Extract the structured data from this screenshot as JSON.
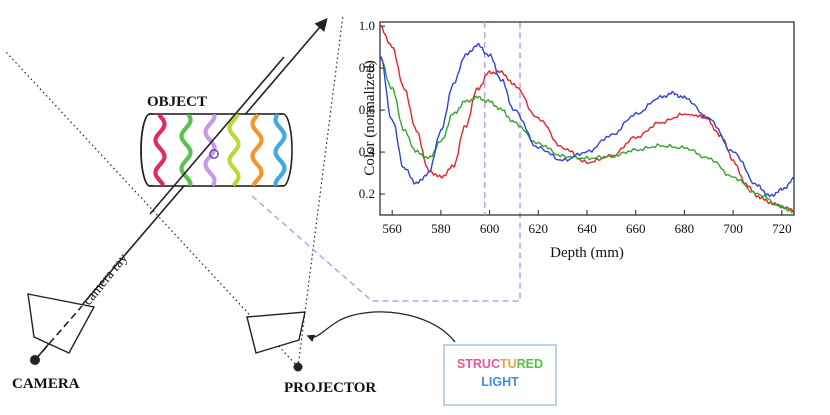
{
  "labels": {
    "object": "OBJECT",
    "camera": "CAMERA",
    "projector": "PROJECTOR",
    "camera_ray": "camera ray",
    "structured_light_parts": [
      {
        "text": "STRUC",
        "color": "#e8559b"
      },
      {
        "text": "TU",
        "color": "#f2a03a"
      },
      {
        "text": "RED",
        "color": "#52c04a"
      }
    ],
    "light_word": {
      "text": "LIGHT",
      "color": "#3b8fd8"
    }
  },
  "stripes": [
    {
      "name": "magenta",
      "color": "#e0286f"
    },
    {
      "name": "green",
      "color": "#5bc24d"
    },
    {
      "name": "lavender",
      "color": "#c89be8"
    },
    {
      "name": "lime",
      "color": "#b9d83a"
    },
    {
      "name": "orange",
      "color": "#f5932c"
    },
    {
      "name": "sky",
      "color": "#3fa9e6"
    }
  ],
  "chart_data": {
    "type": "line",
    "xlabel": "Depth (mm)",
    "ylabel": "Color (normalized)",
    "xlim": [
      555,
      725
    ],
    "ylim": [
      0.1,
      1.02
    ],
    "x_ticks": [
      560,
      580,
      600,
      620,
      640,
      660,
      680,
      700,
      720
    ],
    "y_ticks": [
      0.2,
      0.4,
      0.6,
      0.8,
      1.0
    ],
    "x_tick_labels": [
      "560",
      "580",
      "600",
      "620",
      "640",
      "660",
      "680",
      "700",
      "720"
    ],
    "y_tick_labels": [
      "0.2",
      "0.4",
      "0.6",
      "0.8",
      "1.0"
    ],
    "marker_x": 598,
    "series": [
      {
        "name": "red",
        "color": "#e0262e",
        "x": [
          555,
          560,
          565,
          570,
          575,
          580,
          585,
          590,
          595,
          600,
          605,
          610,
          620,
          630,
          640,
          650,
          660,
          670,
          680,
          688,
          695,
          700,
          705,
          710,
          715,
          720,
          725
        ],
        "y": [
          1.0,
          0.9,
          0.7,
          0.5,
          0.31,
          0.28,
          0.33,
          0.52,
          0.7,
          0.78,
          0.78,
          0.72,
          0.56,
          0.42,
          0.35,
          0.38,
          0.47,
          0.54,
          0.58,
          0.57,
          0.48,
          0.36,
          0.25,
          0.19,
          0.16,
          0.14,
          0.12
        ]
      },
      {
        "name": "green",
        "color": "#33a532",
        "x": [
          555,
          560,
          565,
          570,
          575,
          580,
          585,
          590,
          595,
          600,
          605,
          610,
          620,
          630,
          640,
          650,
          660,
          670,
          680,
          690,
          700,
          710,
          720,
          725
        ],
        "y": [
          0.85,
          0.7,
          0.5,
          0.4,
          0.37,
          0.45,
          0.58,
          0.64,
          0.66,
          0.64,
          0.6,
          0.54,
          0.44,
          0.38,
          0.37,
          0.38,
          0.41,
          0.43,
          0.42,
          0.37,
          0.28,
          0.2,
          0.14,
          0.11
        ]
      },
      {
        "name": "blue",
        "color": "#2f42d6",
        "x": [
          555,
          560,
          565,
          570,
          575,
          580,
          585,
          590,
          595,
          600,
          605,
          610,
          620,
          630,
          640,
          650,
          660,
          670,
          675,
          680,
          690,
          700,
          710,
          715,
          720,
          725
        ],
        "y": [
          0.86,
          0.55,
          0.32,
          0.25,
          0.3,
          0.5,
          0.72,
          0.86,
          0.91,
          0.86,
          0.74,
          0.6,
          0.42,
          0.36,
          0.4,
          0.48,
          0.58,
          0.66,
          0.68,
          0.66,
          0.56,
          0.4,
          0.24,
          0.19,
          0.22,
          0.27
        ]
      }
    ]
  }
}
